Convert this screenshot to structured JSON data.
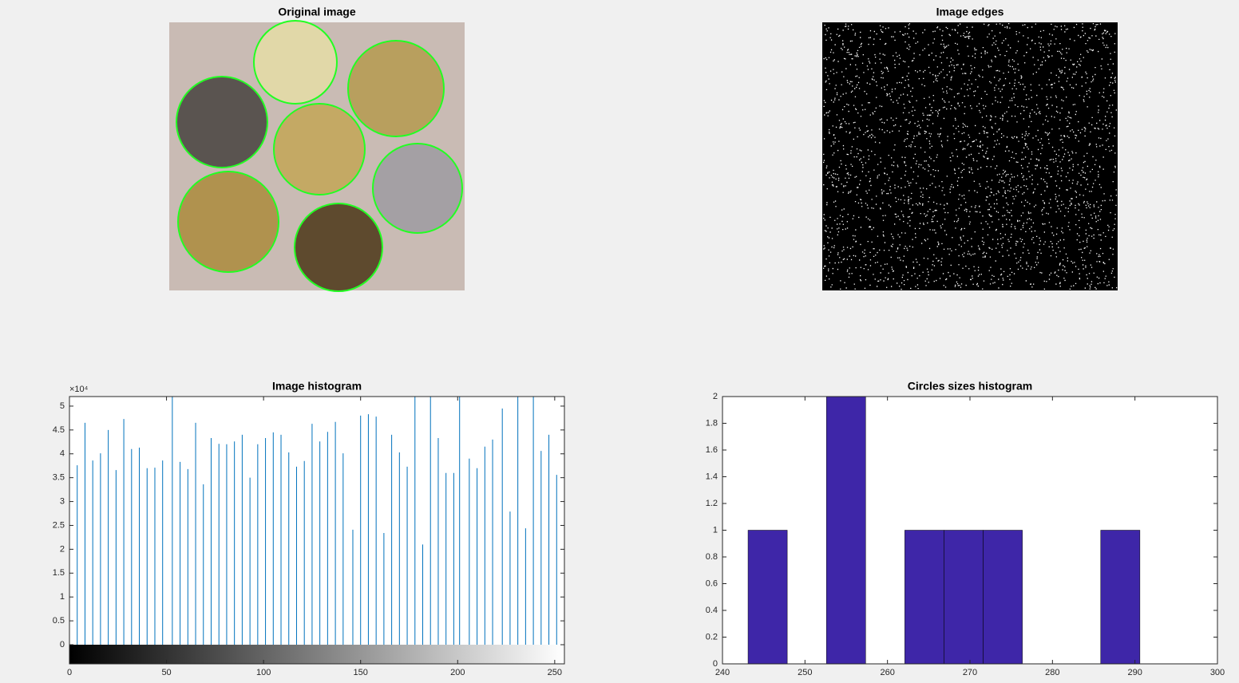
{
  "chart_data": [
    {
      "type": "image",
      "title": "Original image"
    },
    {
      "type": "image",
      "title": "Image edges"
    },
    {
      "type": "stem",
      "title": "Image histogram",
      "color": "#0072bd",
      "y_exponent": "×10⁴",
      "x": [
        4,
        8,
        12,
        16,
        20,
        24,
        28,
        32,
        36,
        40,
        44,
        48,
        53,
        57,
        61,
        65,
        69,
        73,
        77,
        81,
        85,
        89,
        93,
        97,
        101,
        105,
        109,
        113,
        117,
        121,
        125,
        129,
        133,
        137,
        141,
        146,
        150,
        154,
        158,
        162,
        166,
        170,
        174,
        178,
        182,
        186,
        190,
        194,
        198,
        201,
        206,
        210,
        214,
        218,
        223,
        227,
        231,
        235,
        239,
        243,
        247,
        251
      ],
      "values": [
        37600,
        46500,
        38600,
        40100,
        45000,
        36600,
        47300,
        41000,
        41300,
        37000,
        37100,
        38600,
        55000,
        38300,
        36800,
        46500,
        33600,
        43300,
        42100,
        42000,
        42600,
        44000,
        35000,
        42000,
        43300,
        44500,
        44000,
        40300,
        37300,
        38500,
        46300,
        42600,
        44600,
        46700,
        40100,
        24100,
        48000,
        48300,
        47800,
        23400,
        44000,
        40300,
        37300,
        55000,
        21000,
        55000,
        43300,
        36000,
        36000,
        55000,
        39000,
        37000,
        41500,
        43000,
        49500,
        27900,
        55000,
        24400,
        55000,
        40600,
        44000,
        35600
      ],
      "xlim": [
        0,
        255
      ],
      "xticks": [
        0,
        50,
        100,
        150,
        200,
        250
      ],
      "ylim": [
        0,
        52000
      ],
      "yticks": [
        {
          "value": 0,
          "label": "0"
        },
        {
          "value": 5000,
          "label": "0.5"
        },
        {
          "value": 10000,
          "label": "1"
        },
        {
          "value": 15000,
          "label": "1.5"
        },
        {
          "value": 20000,
          "label": "2"
        },
        {
          "value": 25000,
          "label": "2.5"
        },
        {
          "value": 30000,
          "label": "3"
        },
        {
          "value": 35000,
          "label": "3.5"
        },
        {
          "value": 40000,
          "label": "4"
        },
        {
          "value": 45000,
          "label": "4.5"
        },
        {
          "value": 50000,
          "label": "5"
        }
      ],
      "grid": false
    },
    {
      "type": "histogram",
      "title": "Circles sizes histogram",
      "color": "#3e26a8",
      "bins": [
        243.1,
        247.85,
        252.6,
        257.35,
        262.1,
        266.85,
        271.6,
        276.35,
        281.1,
        285.85,
        290.6
      ],
      "values": [
        1,
        0,
        2,
        0,
        1,
        1,
        1,
        0,
        0,
        1
      ],
      "xlim": [
        240,
        300
      ],
      "xticks": [
        240,
        250,
        260,
        270,
        280,
        290,
        300
      ],
      "ylim": [
        0,
        2
      ],
      "yticks": [
        0,
        0.2,
        0.4,
        0.6,
        0.8,
        1,
        1.2,
        1.4,
        1.6,
        1.8,
        2
      ],
      "grid": false
    }
  ]
}
